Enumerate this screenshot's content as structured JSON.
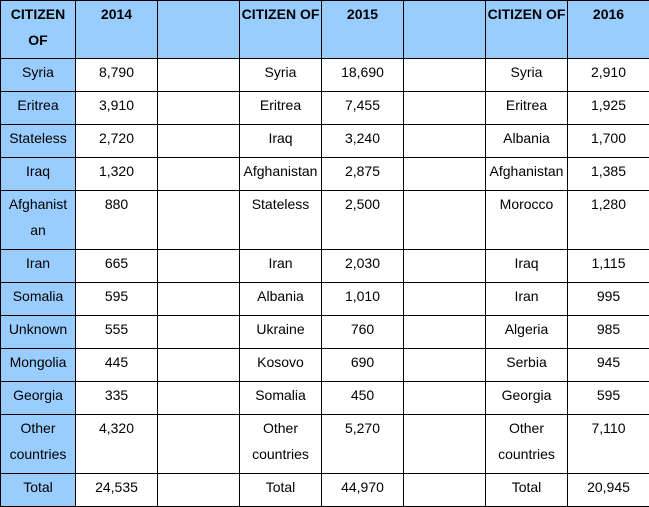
{
  "headers": {
    "citizen_of": "CITIZEN OF",
    "y2014": "2014",
    "y2015": "2015",
    "y2016": "2016"
  },
  "rows": [
    {
      "c14": "Syria",
      "v14": "8,790",
      "c15": "Syria",
      "v15": "18,690",
      "c16": "Syria",
      "v16": "2,910"
    },
    {
      "c14": "Eritrea",
      "v14": "3,910",
      "c15": "Eritrea",
      "v15": "7,455",
      "c16": "Eritrea",
      "v16": "1,925"
    },
    {
      "c14": "Stateless",
      "v14": "2,720",
      "c15": "Iraq",
      "v15": "3,240",
      "c16": "Albania",
      "v16": "1,700"
    },
    {
      "c14": "Iraq",
      "v14": "1,320",
      "c15": "Afghanistan",
      "v15": "2,875",
      "c16": "Afghanistan",
      "v16": "1,385"
    },
    {
      "c14": "Afghanist an",
      "v14": "880",
      "c15": "Stateless",
      "v15": "2,500",
      "c16": "Morocco",
      "v16": "1,280"
    },
    {
      "c14": "Iran",
      "v14": "665",
      "c15": "Iran",
      "v15": "2,030",
      "c16": "Iraq",
      "v16": "1,115"
    },
    {
      "c14": "Somalia",
      "v14": "595",
      "c15": "Albania",
      "v15": "1,010",
      "c16": "Iran",
      "v16": "995"
    },
    {
      "c14": "Unknown",
      "v14": "555",
      "c15": "Ukraine",
      "v15": "760",
      "c16": "Algeria",
      "v16": "985"
    },
    {
      "c14": "Mongolia",
      "v14": "445",
      "c15": "Kosovo",
      "v15": "690",
      "c16": "Serbia",
      "v16": "945"
    },
    {
      "c14": "Georgia",
      "v14": "335",
      "c15": "Somalia",
      "v15": "450",
      "c16": "Georgia",
      "v16": "595"
    },
    {
      "c14": "Other countries",
      "v14": "4,320",
      "c15": "Other countries",
      "v15": "5,270",
      "c16": "Other countries",
      "v16": "7,110"
    },
    {
      "c14": "Total",
      "v14": "24,535",
      "c15": "Total",
      "v15": "44,970",
      "c16": "Total",
      "v16": "20,945"
    }
  ]
}
